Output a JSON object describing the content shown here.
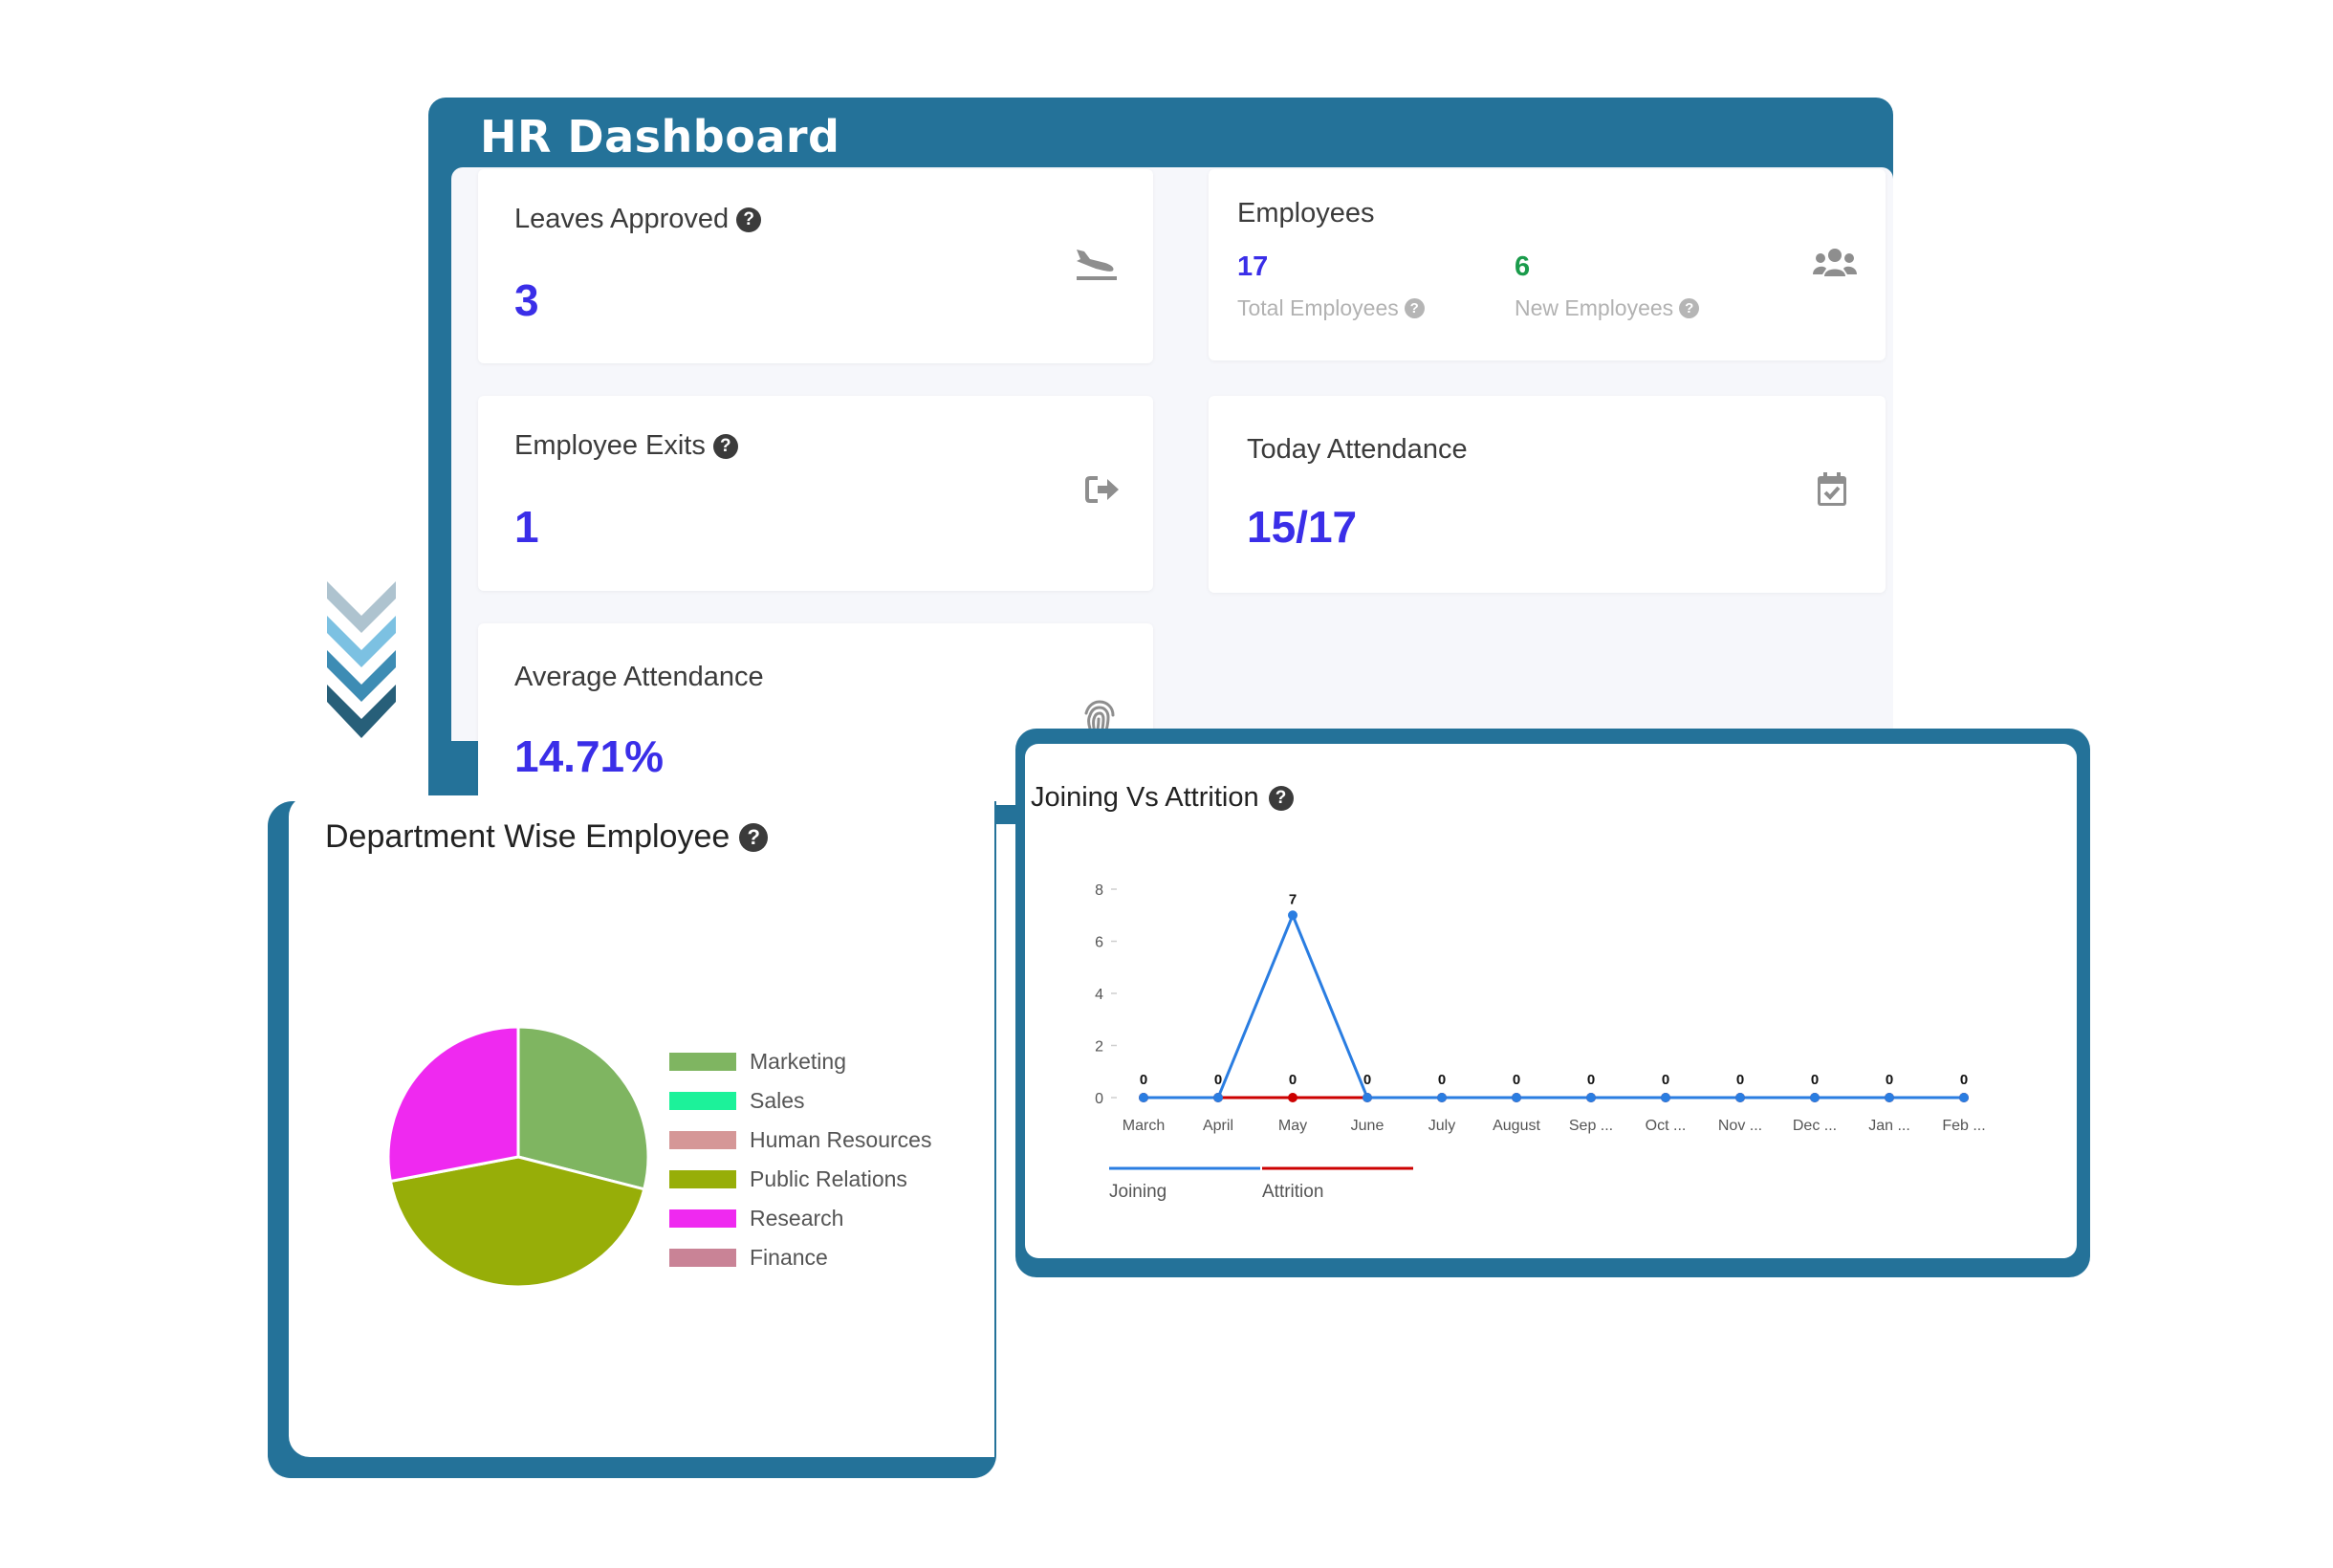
{
  "dashboard": {
    "title": "HR Dashboard",
    "cards": {
      "leaves": {
        "title": "Leaves Approved",
        "value": "3",
        "icon": "plane-landing-icon"
      },
      "employees": {
        "title": "Employees",
        "total_value": "17",
        "total_label": "Total Employees",
        "new_value": "6",
        "new_label": "New Employees",
        "icon": "users-icon"
      },
      "exits": {
        "title": "Employee Exits",
        "value": "1",
        "icon": "sign-out-icon"
      },
      "today": {
        "title": "Today Attendance",
        "value": "15/17",
        "icon": "calendar-check-icon"
      },
      "average": {
        "title": "Average Attendance",
        "value": "14.71%",
        "icon": "fingerprint-icon"
      }
    },
    "help_glyph": "?"
  },
  "colors": {
    "frame": "#247299",
    "value": "#3a2ee8",
    "new_employees": "#1a9b4b",
    "joining": "#2a7de1",
    "attrition": "#cc0000"
  },
  "joining_chart": {
    "title": "Joining Vs Attrition",
    "chart_data": {
      "type": "line",
      "x": [
        "March",
        "April",
        "May",
        "June",
        "July",
        "August",
        "Sep ...",
        "Oct ...",
        "Nov ...",
        "Dec ...",
        "Jan ...",
        "Feb ..."
      ],
      "series": [
        {
          "name": "Joining",
          "values": [
            0,
            0,
            7,
            0,
            0,
            0,
            0,
            0,
            0,
            0,
            0,
            0
          ],
          "color": "#2a7de1"
        },
        {
          "name": "Attrition",
          "values": [
            0,
            0,
            0,
            0,
            0,
            0,
            0,
            0,
            0,
            0,
            0,
            0
          ],
          "color": "#cc0000"
        }
      ],
      "ylim": [
        0,
        8
      ],
      "yticks": [
        "0",
        "2",
        "4",
        "6",
        "8"
      ],
      "legend_position": "bottom-left",
      "grid": false
    }
  },
  "dept_chart": {
    "title": "Department Wise Employee",
    "chart_data": {
      "type": "pie",
      "labels": [
        "Marketing",
        "Sales",
        "Human Resources",
        "Public Relations",
        "Research",
        "Finance"
      ],
      "values": [
        0.29,
        0,
        0,
        0.43,
        0.28,
        0
      ],
      "colors": [
        "#7fb561",
        "#1cf29a",
        "#d59797",
        "#97ae08",
        "#ef29f0",
        "#c98396"
      ],
      "legend_position": "right"
    }
  }
}
